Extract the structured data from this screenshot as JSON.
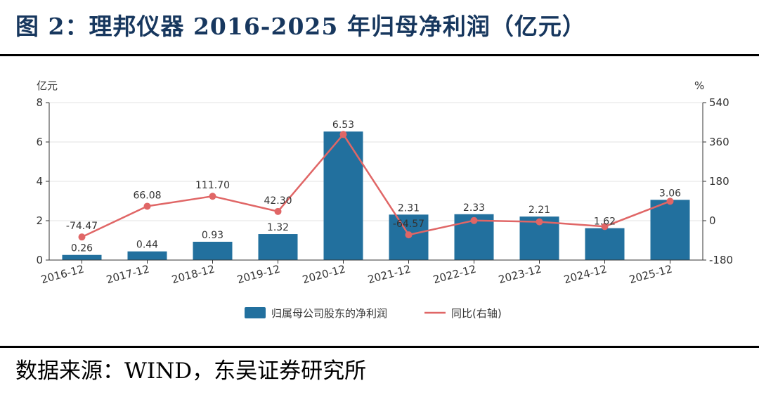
{
  "figure": {
    "title": "图 2：理邦仪器 2016-2025 年归母净利润（亿元）",
    "source": "数据来源：WIND，东吴证券研究所"
  },
  "colors": {
    "bar": "#22709e",
    "line": "#e06666",
    "title": "#17375e",
    "axis": "#333333",
    "grid": "#e3e3e3"
  },
  "chart_data": {
    "type": "bar",
    "title": "",
    "xlabel": "",
    "ylabel": "亿元",
    "y2label": "%",
    "categories": [
      "2016-12",
      "2017-12",
      "2018-12",
      "2019-12",
      "2020-12",
      "2021-12",
      "2022-12",
      "2023-12",
      "2024-12",
      "2025-12"
    ],
    "ylim": [
      0,
      8
    ],
    "yticks": [
      "0",
      "2",
      "4",
      "6",
      "8"
    ],
    "y2lim": [
      -180,
      540
    ],
    "y2ticks": [
      "-180",
      "0",
      "180",
      "360",
      "540"
    ],
    "grid": true,
    "legend_position": "bottom",
    "series": [
      {
        "name": "归属母公司股东的净利润",
        "type": "bar",
        "axis": "left",
        "values": [
          0.26,
          0.44,
          0.93,
          1.32,
          6.53,
          2.31,
          2.33,
          2.21,
          1.62,
          3.06
        ],
        "labels": [
          "0.26",
          "0.44",
          "0.93",
          "1.32",
          "6.53",
          "2.31",
          "2.33",
          "2.21",
          "1.62",
          "3.06"
        ]
      },
      {
        "name": "同比(右轴)",
        "type": "line",
        "axis": "right",
        "values": [
          -74.47,
          66.08,
          111.7,
          42.3,
          394.7,
          -64.57,
          0.87,
          -5.15,
          -26.7,
          88.89
        ],
        "labels": [
          "-74.47",
          "66.08",
          "111.70",
          "42.30",
          "",
          "-64.57",
          "",
          "",
          "",
          ""
        ]
      }
    ]
  }
}
